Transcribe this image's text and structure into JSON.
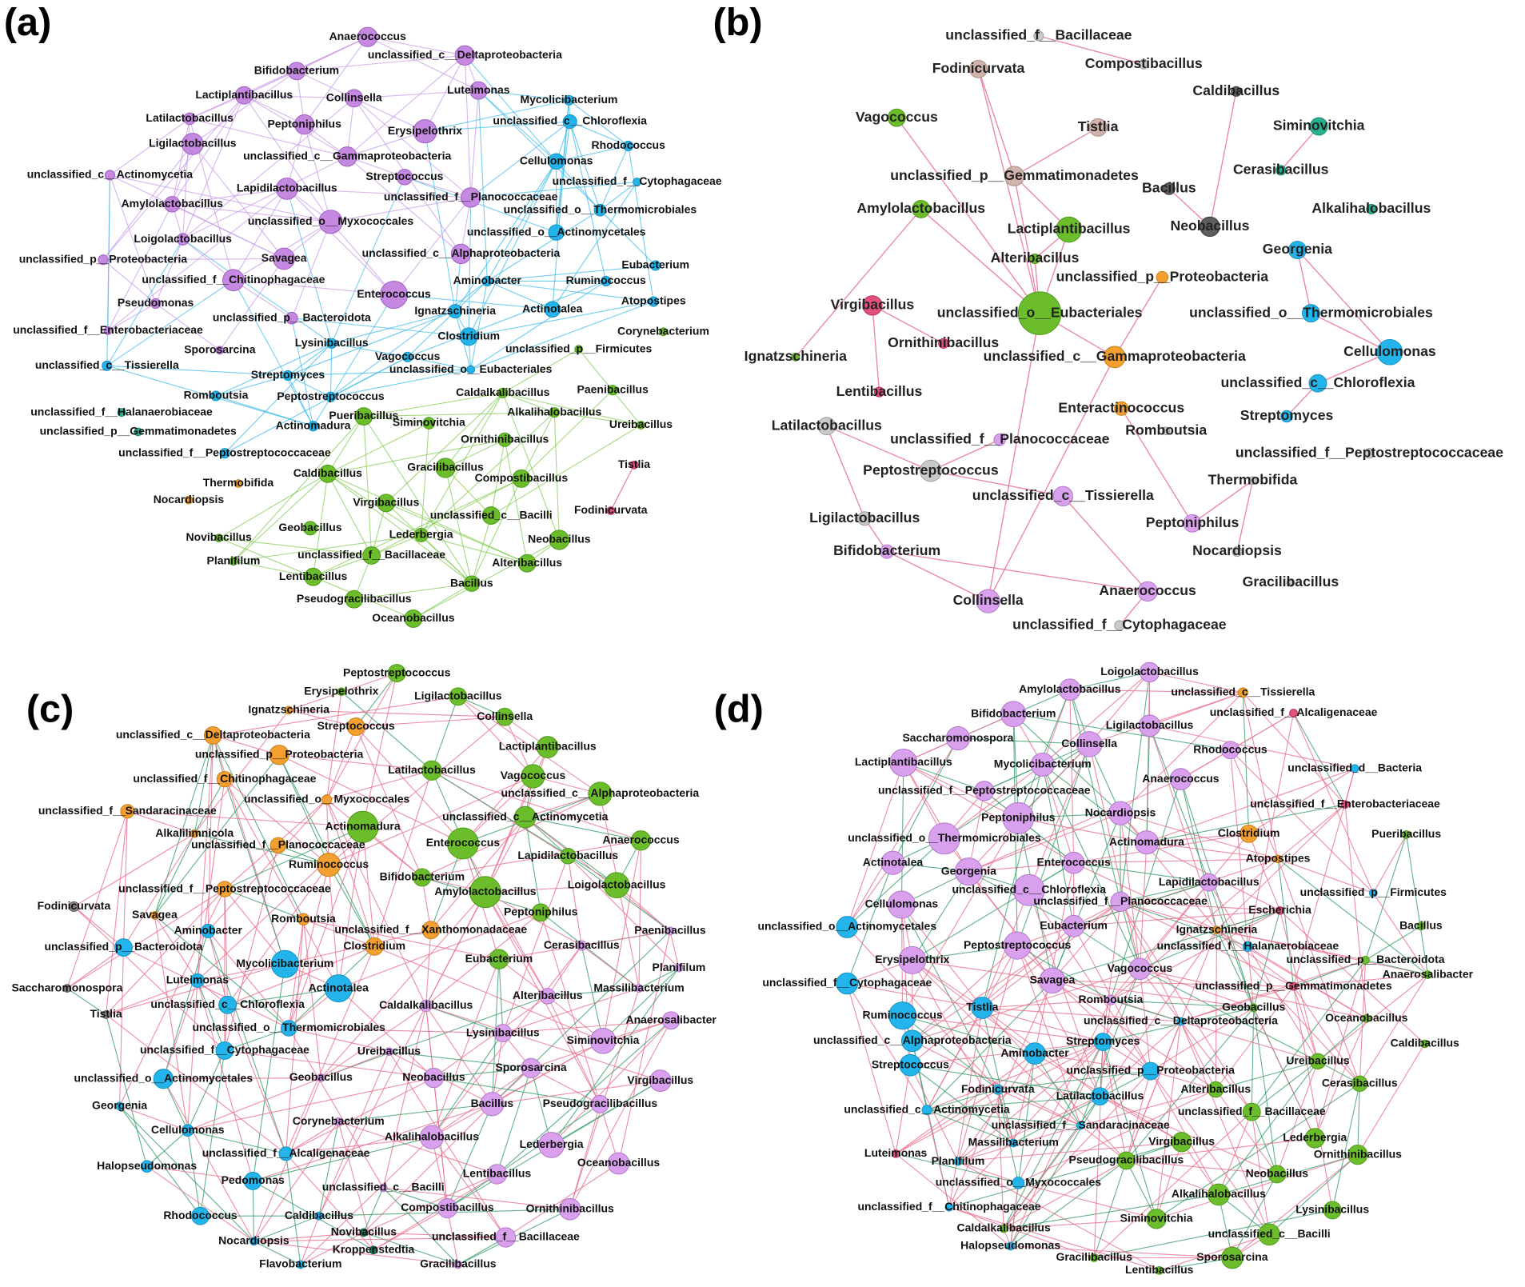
{
  "panels": [
    {
      "label": "(a)",
      "nodes": [
        "Anaerococcus",
        "unclassified_c__Deltaproteobacteria",
        "Bifidobacterium",
        "Luteimonas",
        "Mycolicibacterium",
        "Lactiplantibacillus",
        "Collinsella",
        "Latilactobacillus",
        "Peptoniphilus",
        "Erysipelothrix",
        "unclassified_c__Chloroflexia",
        "Ligilactobacillus",
        "unclassified_c__Gammaproteobacteria",
        "Rhodococcus",
        "unclassified_c__Actinomycetia",
        "Cellulomonas",
        "Streptococcus",
        "Lapidilactobacillus",
        "unclassified_f__Cytophagaceae",
        "Amylolactobacillus",
        "unclassified_f__Planococcaceae",
        "unclassified_o__Thermomicrobiales",
        "unclassified_o__Myxococcales",
        "unclassified_o__Actinomycetales",
        "Loigolactobacillus",
        "unclassified_c__Alphaproteobacteria",
        "unclassified_p__Proteobacteria",
        "Savagea",
        "Eubacterium",
        "unclassified_f__Chitinophagaceae",
        "Aminobacter",
        "Ruminococcus",
        "Enterococcus",
        "Pseudomonas",
        "Atopostipes",
        "unclassified_p__Bacteroidota",
        "Ignatzschineria",
        "Actinotalea",
        "unclassified_f__Enterobacteriaceae",
        "Clostridium",
        "Corynebacterium",
        "Lysinibacillus",
        "Sporosarcina",
        "unclassified_p__Firmicutes",
        "Vagococcus",
        "unclassified_c__Tissierella",
        "unclassified_o__Eubacteriales",
        "Streptomyces",
        "Romboutsia",
        "Peptostreptococcus",
        "Caldalkalibacillus",
        "Paenibacillus",
        "unclassified_f__Halanaerobiaceae",
        "Alkalihalobacillus",
        "Pueribacillus",
        "Siminovitchia",
        "Ureibacillus",
        "Actinomadura",
        "unclassified_p__Gemmatimonadetes",
        "Ornithinibacillus",
        "unclassified_f__Peptostreptococcaceae",
        "Tistlia",
        "Caldibacillus",
        "Gracilibacillus",
        "Compostibacillus",
        "Thermobifida",
        "Nocardiopsis",
        "Virgibacillus",
        "unclassified_c__Bacilli",
        "Fodinicurvata",
        "Geobacillus",
        "Lederbergia",
        "Neobacillus",
        "Novibacillus",
        "unclassified_f__Bacillaceae",
        "Alteribacillus",
        "Planifilum",
        "Lentibacillus",
        "Bacillus",
        "Pseudogracilibacillus",
        "Oceanobacillus"
      ]
    },
    {
      "label": "(b)",
      "nodes": [
        "unclassified_f__Bacillaceae",
        "Fodinicurvata",
        "Compostibacillus",
        "Caldibacillus",
        "Vagococcus",
        "Tistlia",
        "Siminovitchia",
        "unclassified_p__Gemmatimonadetes",
        "Cerasibacillus",
        "Bacillus",
        "Amylolactobacillus",
        "Alkalihalobacillus",
        "Lactiplantibacillus",
        "Neobacillus",
        "Georgenia",
        "Alteribacillus",
        "unclassified_p__Proteobacteria",
        "Virgibacillus",
        "unclassified_o__Eubacteriales",
        "unclassified_o__Thermomicrobiales",
        "Ornithinibacillus",
        "Cellulomonas",
        "Ignatzschineria",
        "unclassified_c__Gammaproteobacteria",
        "Lentibacillus",
        "unclassified_c__Chloroflexia",
        "Enteractinococcus",
        "Streptomyces",
        "Latilactobacillus",
        "unclassified_f__Planococcaceae",
        "Romboutsia",
        "unclassified_f__Peptostreptococcaceae",
        "Thermobifida",
        "Peptostreptococcus",
        "unclassified_c__Tissierella",
        "Ligilactobacillus",
        "Peptoniphilus",
        "Bifidobacterium",
        "Nocardiopsis",
        "Gracilibacillus",
        "Anaerococcus",
        "Collinsella",
        "unclassified_f__Cytophagaceae"
      ]
    },
    {
      "label": "(c)",
      "nodes": [
        "Peptostreptococcus",
        "Erysipelothrix",
        "Ligilactobacillus",
        "Ignatzschineria",
        "Collinsella",
        "unclassified_c__Deltaproteobacteria",
        "Streptococcus",
        "unclassified_p__Proteobacteria",
        "Lactiplantibacillus",
        "Latilactobacillus",
        "unclassified_f__Chitinophagaceae",
        "Vagococcus",
        "unclassified_c__Alphaproteobacteria",
        "unclassified_f__Sandaracinaceae",
        "unclassified_o__Myxococcales",
        "unclassified_c__Actinomycetia",
        "Actinomadura",
        "Alkalilimnicola",
        "unclassified_f__Planococcaceae",
        "Enterococcus",
        "Anaerococcus",
        "Lapidilactobacillus",
        "Ruminococcus",
        "Bifidobacterium",
        "Amylolactobacillus",
        "Loigolactobacillus",
        "unclassified_f__Peptostreptococcaceae",
        "Fodinicurvata",
        "Peptoniphilus",
        "Savagea",
        "Romboutsia",
        "Aminobacter",
        "unclassified_f__Xanthomonadaceae",
        "Paenibacillus",
        "unclassified_p__Bacteroidota",
        "Clostridium",
        "Cerasibacillus",
        "Eubacterium",
        "Mycolicibacterium",
        "Planifilum",
        "Luteimonas",
        "Saccharomonospora",
        "Actinotalea",
        "Massilibacterium",
        "Alteribacillus",
        "unclassified_c__Chloroflexia",
        "Caldalkalibacillus",
        "Tistlia",
        "Anaerosalibacter",
        "unclassified_o__Thermomicrobiales",
        "Lysinibacillus",
        "Siminovitchia",
        "unclassified_f__Cytophagaceae",
        "Ureibacillus",
        "Sporosarcina",
        "unclassified_o__Actinomycetales",
        "Geobacillus",
        "Neobacillus",
        "Virgibacillus",
        "Georgenia",
        "Bacillus",
        "Pseudogracilibacillus",
        "Cellulomonas",
        "Corynebacterium",
        "Alkalihalobacillus",
        "Lederbergia",
        "unclassified_f__Alcaligenaceae",
        "Halopseudomonas",
        "Oceanobacillus",
        "Pedomonas",
        "Lentibacillus",
        "unclassified_c__Bacilli",
        "Ornithinibacillus",
        "Caldibacillus",
        "Compostibacillus",
        "Rhodococcus",
        "Novibacillus",
        "unclassified_f__Bacillaceae",
        "Kroppenstedtia",
        "Nocardiopsis",
        "Flavobacterium",
        "Gracilibacillus"
      ]
    },
    {
      "label": "(d)",
      "nodes": [
        "Loigolactobacillus",
        "Amylolactobacillus",
        "unclassified_c__Tissierella",
        "Bifidobacterium",
        "Ligilactobacillus",
        "unclassified_f__Alcaligenaceae",
        "Saccharomonospora",
        "Collinsella",
        "Rhodococcus",
        "Lactiplantibacillus",
        "Mycolicibacterium",
        "unclassified_d__Bacteria",
        "Anaerococcus",
        "unclassified_f__Peptostreptococcaceae",
        "unclassified_f__Enterobacteriaceae",
        "Peptoniphilus",
        "Nocardiopsis",
        "unclassified_o__Thermomicrobiales",
        "Clostridium",
        "Pueribacillus",
        "Actinomadura",
        "Actinotalea",
        "Enterococcus",
        "Atopostipes",
        "Georgenia",
        "Lapidilactobacillus",
        "unclassified_c__Chloroflexia",
        "unclassified_f__Planococcaceae",
        "unclassified_p__Firmicutes",
        "Cellulomonas",
        "Escherichia",
        "unclassified_o__Actinomycetales",
        "Eubacterium",
        "Ignatzschineria",
        "Bacillus",
        "Peptostreptococcus",
        "unclassified_f__Halanaerobiaceae",
        "Erysipelothrix",
        "unclassified_p__Bacteroidota",
        "Vagococcus",
        "Anaerosalibacter",
        "unclassified_f__Cytophagaceae",
        "Savagea",
        "unclassified_p__Gemmatimonadetes",
        "Tistlia",
        "Romboutsia",
        "Geobacillus",
        "Ruminococcus",
        "unclassified_c__Deltaproteobacteria",
        "Oceanobacillus",
        "Caldibacillus",
        "unclassified_c__Alphaproteobacteria",
        "Streptomyces",
        "Aminobacter",
        "Ureibacillus",
        "Streptococcus",
        "unclassified_p__Proteobacteria",
        "Alteribacillus",
        "Cerasibacillus",
        "Fodinicurvata",
        "Latilactobacillus",
        "unclassified_c__Actinomycetia",
        "unclassified_f__Bacillaceae",
        "unclassified_f__Sandaracinaceae",
        "Massilibacterium",
        "Virgibacillus",
        "Lederbergia",
        "Luteimonas",
        "Planifilum",
        "Pseudogracilibacillus",
        "Ornithinibacillus",
        "Neobacillus",
        "unclassified_o__Myxococcales",
        "Alkalihalobacillus",
        "Lysinibacillus",
        "unclassified_f__Chitinophagaceae",
        "Siminovitchia",
        "Caldalkalibacillus",
        "unclassified_c__Bacilli",
        "Halopseudomonas",
        "Gracilibacillus",
        "Sporosarcina",
        "Lentibacillus"
      ]
    }
  ]
}
